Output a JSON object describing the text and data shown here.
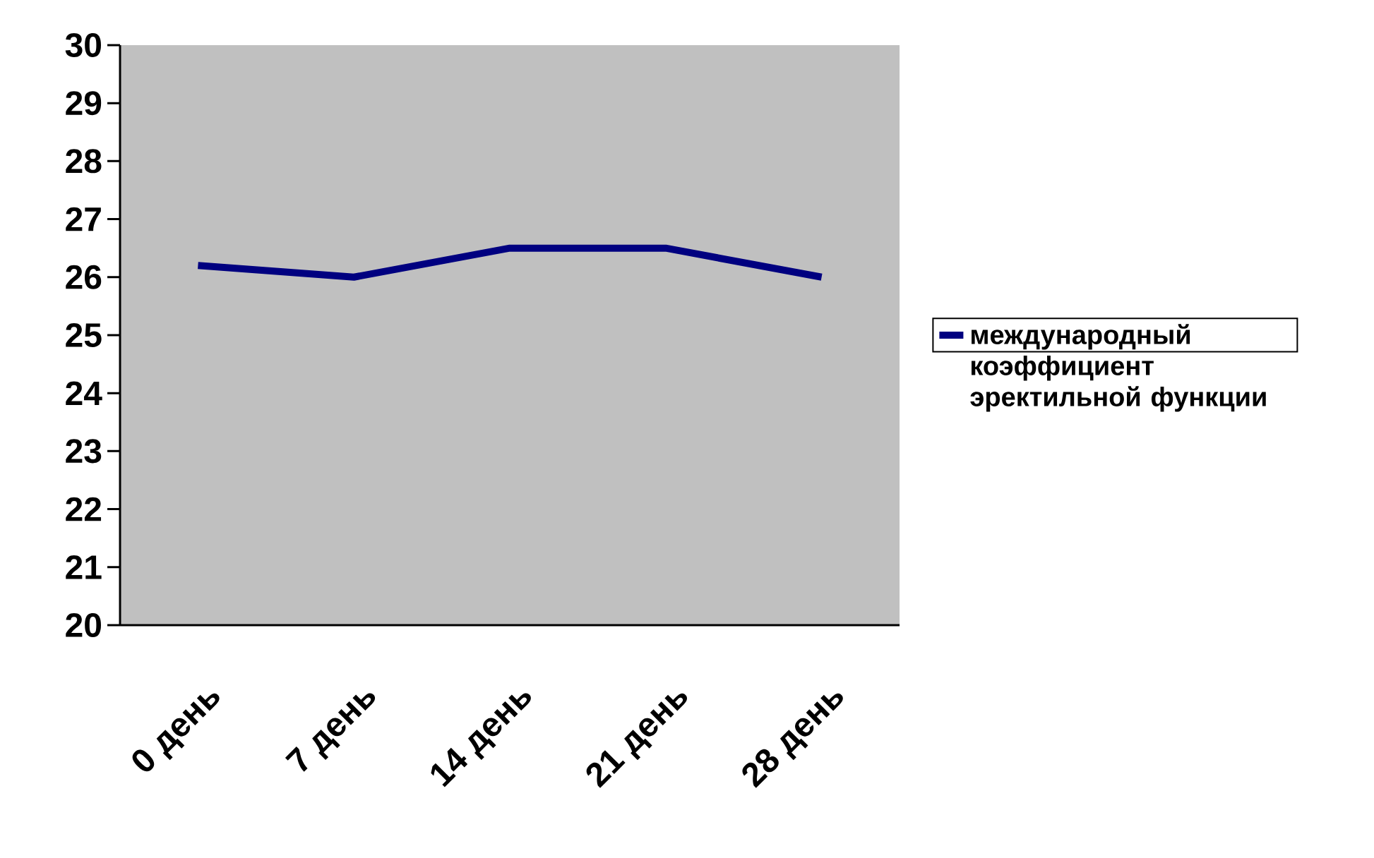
{
  "chart_data": {
    "type": "line",
    "categories": [
      "0 день",
      "7 день",
      "14 день",
      "21 день",
      "28 день"
    ],
    "series": [
      {
        "name": "международный коэффициент эректильной функции",
        "color": "#000080",
        "values": [
          26.2,
          26.0,
          26.5,
          26.5,
          26.0
        ]
      }
    ],
    "ylim": [
      20,
      30
    ],
    "yticks": [
      20,
      21,
      22,
      23,
      24,
      25,
      26,
      27,
      28,
      29,
      30
    ],
    "legend": "right",
    "marker": "none",
    "line_style": "solid",
    "grid": false
  }
}
